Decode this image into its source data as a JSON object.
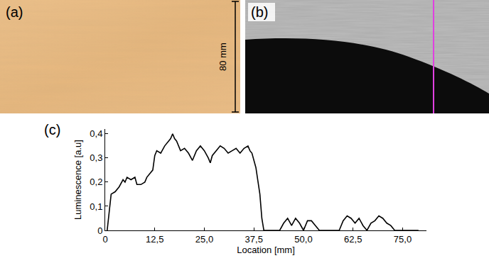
{
  "panels": {
    "a": {
      "label": "(a)",
      "scale_label": "80 mm"
    },
    "b": {
      "label": "(b)"
    }
  },
  "chart_data": {
    "type": "line",
    "panel_label": "(c)",
    "x_label": "Location [mm]",
    "y_label": "Luminescence [a.u]",
    "xlim": [
      0,
      81
    ],
    "ylim": [
      0,
      0.42
    ],
    "xticks": [
      0,
      {
        "value": 12.5,
        "label": "12,5"
      },
      {
        "value": 25,
        "label": "25,0"
      },
      {
        "value": 37.5,
        "label": "37,5"
      },
      {
        "value": 50,
        "label": "50,0"
      },
      {
        "value": 62.5,
        "label": "62,5"
      },
      {
        "value": 75,
        "label": "75,0"
      }
    ],
    "yticks": [
      0,
      {
        "value": 0.1,
        "label": "0,1"
      },
      {
        "value": 0.2,
        "label": "0,2"
      },
      {
        "value": 0.3,
        "label": "0,3"
      },
      {
        "value": 0.4,
        "label": "0,4"
      }
    ],
    "grid": false,
    "x": [
      0.5,
      1,
      1.5,
      2.5,
      3.5,
      4.5,
      5,
      5.5,
      6.5,
      7.5,
      8,
      9,
      10,
      10.5,
      11,
      12,
      12.5,
      13,
      14,
      15,
      16,
      16.5,
      17,
      17.5,
      18,
      19,
      20,
      21,
      22,
      23,
      24,
      25,
      26,
      26.5,
      27,
      28,
      29,
      30,
      31,
      32,
      33,
      34,
      35,
      36,
      36.5,
      37,
      38,
      39,
      39.5,
      40,
      41,
      42,
      43,
      44,
      45,
      46,
      47,
      48,
      49,
      50,
      51,
      52,
      53,
      54,
      55,
      56,
      57,
      58,
      59,
      60,
      61,
      62,
      63,
      64,
      65,
      66,
      67,
      68,
      69,
      70,
      71,
      72,
      73,
      74,
      75,
      76,
      77,
      78,
      79
    ],
    "series": [
      {
        "color": "#000000",
        "values": [
          0,
          0.08,
          0.15,
          0.16,
          0.18,
          0.21,
          0.2,
          0.22,
          0.21,
          0.22,
          0.19,
          0.19,
          0.2,
          0.22,
          0.23,
          0.25,
          0.31,
          0.33,
          0.32,
          0.35,
          0.37,
          0.38,
          0.4,
          0.38,
          0.37,
          0.33,
          0.34,
          0.32,
          0.29,
          0.33,
          0.35,
          0.33,
          0.3,
          0.28,
          0.31,
          0.33,
          0.35,
          0.34,
          0.32,
          0.33,
          0.34,
          0.32,
          0.34,
          0.35,
          0.33,
          0.32,
          0.26,
          0.15,
          0.05,
          0,
          0,
          0,
          0,
          0,
          0.03,
          0.05,
          0.02,
          0.05,
          0.03,
          0,
          0.04,
          0.04,
          0.02,
          0,
          0,
          0,
          0,
          0,
          0,
          0.04,
          0.06,
          0.05,
          0.03,
          0.05,
          0.02,
          0,
          0.03,
          0.04,
          0.06,
          0.05,
          0.03,
          0.02,
          0,
          0,
          0,
          0,
          0,
          0,
          0
        ]
      }
    ]
  }
}
